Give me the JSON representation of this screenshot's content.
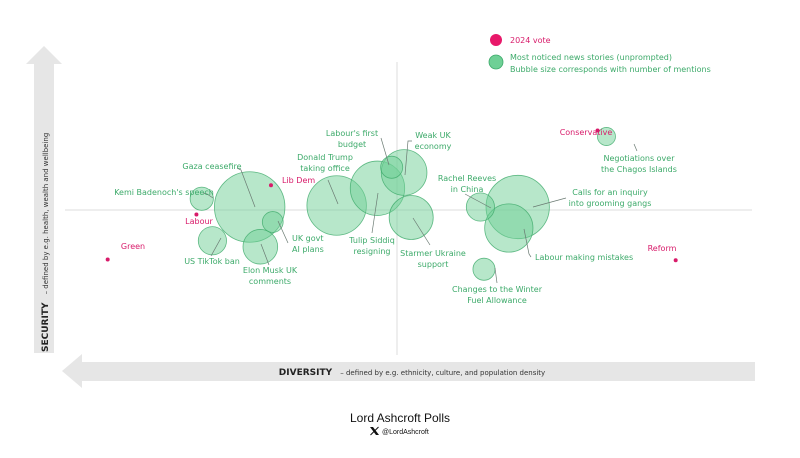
{
  "chart_data": {
    "type": "scatter",
    "subtype": "bubble-quadrant",
    "title": "",
    "xlabel": {
      "title": "DIVERSITY",
      "description": "– defined by e.g. ethnicity, culture, and population density"
    },
    "ylabel": {
      "title": "SECURITY",
      "description": "– defined by e.g. health, wealth and wellbeing"
    },
    "xlim": [
      -1,
      1
    ],
    "ylim": [
      -1,
      1
    ],
    "grid": false,
    "legend_position": "top-right",
    "legend": [
      {
        "key": "party",
        "label": "2024 vote",
        "color": "#e8186a"
      },
      {
        "key": "news",
        "label": "Most noticed news stories (unprompted)",
        "sublabel": "Bubble size corresponds with number of mentions",
        "color": "#6fd096"
      }
    ],
    "parties": [
      {
        "name": "Conservative",
        "x": 0.565,
        "y": 0.53
      },
      {
        "name": "Reform",
        "x": 0.785,
        "y": -0.335
      },
      {
        "name": "Labour",
        "x": -0.565,
        "y": -0.03
      },
      {
        "name": "Lib Dem",
        "x": -0.355,
        "y": 0.165
      },
      {
        "name": "Green",
        "x": -0.815,
        "y": -0.33
      }
    ],
    "stories": [
      {
        "name": "Gaza ceasefire",
        "x": -0.415,
        "y": 0.02,
        "size": 100
      },
      {
        "name": "Kemi Badenoch's speech",
        "x": -0.55,
        "y": 0.075,
        "size": 9
      },
      {
        "name": "US TikTok ban",
        "x": -0.52,
        "y": -0.205,
        "size": 14
      },
      {
        "name": "UK govt AI plans",
        "x": -0.35,
        "y": -0.08,
        "size": 7
      },
      {
        "name": "Elon Musk UK comments",
        "x": -0.385,
        "y": -0.245,
        "size": 22
      },
      {
        "name": "Donald Trump taking office",
        "x": -0.17,
        "y": 0.03,
        "size": 70
      },
      {
        "name": "Tulip Siddiq resigning",
        "x": -0.055,
        "y": 0.145,
        "size": 58
      },
      {
        "name": "Labour's first budget",
        "x": -0.015,
        "y": 0.285,
        "size": 8
      },
      {
        "name": "Weak UK economy",
        "x": 0.02,
        "y": 0.25,
        "size": 40
      },
      {
        "name": "Starmer Ukraine support",
        "x": 0.04,
        "y": -0.05,
        "size": 37
      },
      {
        "name": "Rachel Reeves in China",
        "x": 0.235,
        "y": 0.02,
        "size": 14
      },
      {
        "name": "Calls for an inquiry into grooming gangs",
        "x": 0.34,
        "y": 0.02,
        "size": 80
      },
      {
        "name": "Labour making mistakes",
        "x": 0.315,
        "y": -0.12,
        "size": 45
      },
      {
        "name": "Changes to the Winter Fuel Allowance",
        "x": 0.245,
        "y": -0.395,
        "size": 8
      },
      {
        "name": "Negotiations over the Chagos Islands",
        "x": 0.59,
        "y": 0.49,
        "size": 5
      }
    ]
  },
  "footer": {
    "brand": "Lord Ashcroft Polls",
    "social_icon": "x-logo-icon",
    "handle": "@LordAshcroft"
  }
}
